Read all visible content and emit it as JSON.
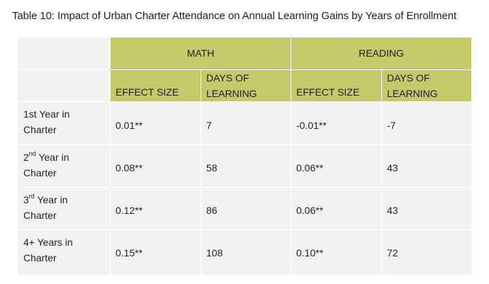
{
  "caption": "Table 10: Impact of Urban Charter Attendance on Annual Learning Gains by Years of Enrollment",
  "groups": {
    "math": "MATH",
    "reading": "READING"
  },
  "subheaders": {
    "effect_size": "EFFECT SIZE",
    "days_line1": "DAYS OF",
    "days_line2": "LEARNING"
  },
  "rows": [
    {
      "label_num": "1st",
      "label_sup": "",
      "label_rest": " Year in",
      "label_line2": "Charter",
      "math_effect": "0.01**",
      "math_days": "7",
      "reading_effect": "-0.01**",
      "reading_days": "-7"
    },
    {
      "label_num": "2",
      "label_sup": "nd",
      "label_rest": " Year in",
      "label_line2": "Charter",
      "math_effect": "0.08**",
      "math_days": "58",
      "reading_effect": "0.06**",
      "reading_days": "43"
    },
    {
      "label_num": "3",
      "label_sup": "rd",
      "label_rest": " Year in",
      "label_line2": "Charter",
      "math_effect": "0.12**",
      "math_days": "86",
      "reading_effect": "0.06**",
      "reading_days": "43"
    },
    {
      "label_num": "4+",
      "label_sup": "",
      "label_rest": " Years in",
      "label_line2": "Charter",
      "math_effect": "0.15**",
      "math_days": "108",
      "reading_effect": "0.10**",
      "reading_days": "72"
    }
  ]
}
